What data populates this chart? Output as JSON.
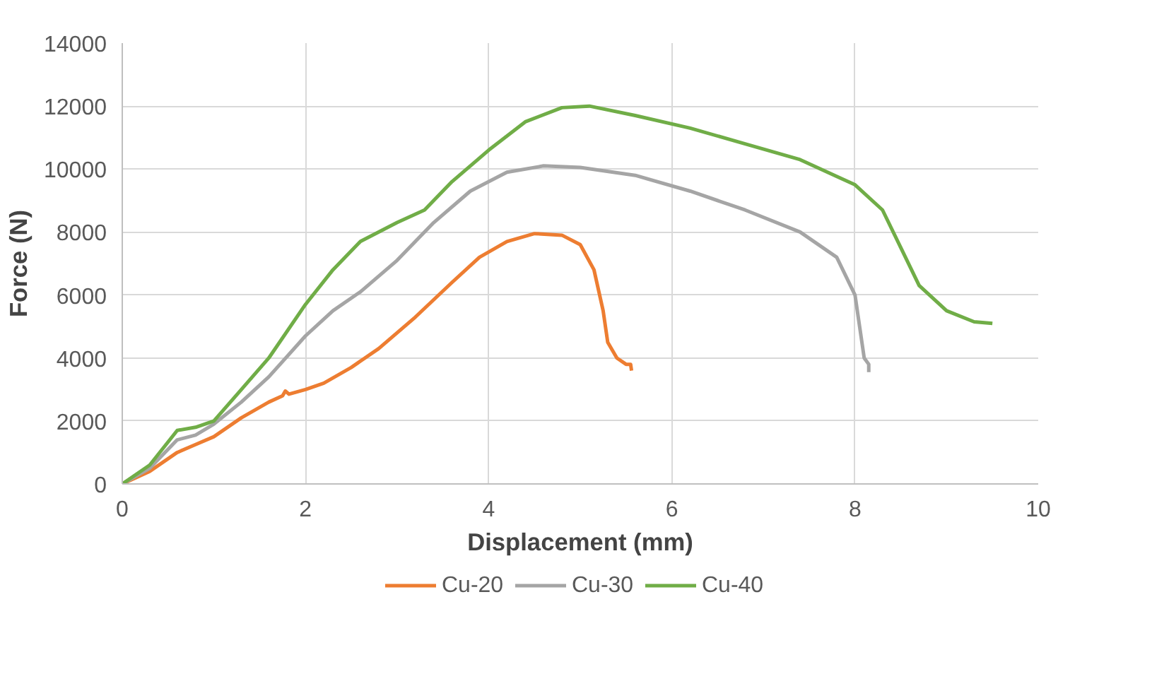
{
  "chart_data": {
    "type": "line",
    "xlabel": "Displacement (mm)",
    "ylabel": "Force (N)",
    "xlim": [
      0,
      10
    ],
    "xticks": [
      0,
      2,
      4,
      6,
      8,
      10
    ],
    "ylim": [
      0,
      14000
    ],
    "yticks": [
      0,
      2000,
      4000,
      6000,
      8000,
      10000,
      12000,
      14000
    ],
    "grid": true,
    "legend": "bottom",
    "marker": "none",
    "line_style": "solid",
    "series": [
      {
        "name": "Cu-20",
        "color": "#ed7d31",
        "x": [
          0,
          0.3,
          0.6,
          0.8,
          1.0,
          1.3,
          1.6,
          1.75,
          1.78,
          1.82,
          2.0,
          2.2,
          2.5,
          2.8,
          3.2,
          3.6,
          3.9,
          4.2,
          4.5,
          4.8,
          5.0,
          5.15,
          5.25,
          5.3,
          5.4,
          5.5,
          5.55,
          5.56
        ],
        "values": [
          0,
          400,
          1000,
          1250,
          1500,
          2100,
          2600,
          2800,
          2950,
          2850,
          3000,
          3200,
          3700,
          4300,
          5300,
          6400,
          7200,
          7700,
          7950,
          7900,
          7600,
          6800,
          5500,
          4500,
          4000,
          3800,
          3800,
          3600
        ]
      },
      {
        "name": "Cu-30",
        "color": "#a5a5a5",
        "x": [
          0,
          0.3,
          0.6,
          0.8,
          1.0,
          1.3,
          1.6,
          2.0,
          2.3,
          2.6,
          3.0,
          3.4,
          3.8,
          4.2,
          4.6,
          5.0,
          5.6,
          6.2,
          6.8,
          7.4,
          7.8,
          8.0,
          8.05,
          8.1,
          8.15,
          8.15
        ],
        "values": [
          0,
          500,
          1400,
          1550,
          1900,
          2600,
          3400,
          4700,
          5500,
          6100,
          7100,
          8300,
          9300,
          9900,
          10100,
          10050,
          9800,
          9300,
          8700,
          8000,
          7200,
          6000,
          5000,
          4000,
          3800,
          3550
        ]
      },
      {
        "name": "Cu-40",
        "color": "#70ad47",
        "x": [
          0,
          0.3,
          0.6,
          0.8,
          1.0,
          1.3,
          1.6,
          2.0,
          2.3,
          2.6,
          3.0,
          3.3,
          3.6,
          4.0,
          4.4,
          4.8,
          5.1,
          5.6,
          6.2,
          6.8,
          7.4,
          8.0,
          8.3,
          8.5,
          8.7,
          9.0,
          9.3,
          9.5
        ],
        "values": [
          0,
          600,
          1700,
          1800,
          2000,
          3000,
          4000,
          5700,
          6800,
          7700,
          8300,
          8700,
          9600,
          10600,
          11500,
          11950,
          12000,
          11700,
          11300,
          10800,
          10300,
          9500,
          8700,
          7500,
          6300,
          5500,
          5150,
          5100
        ]
      }
    ]
  }
}
